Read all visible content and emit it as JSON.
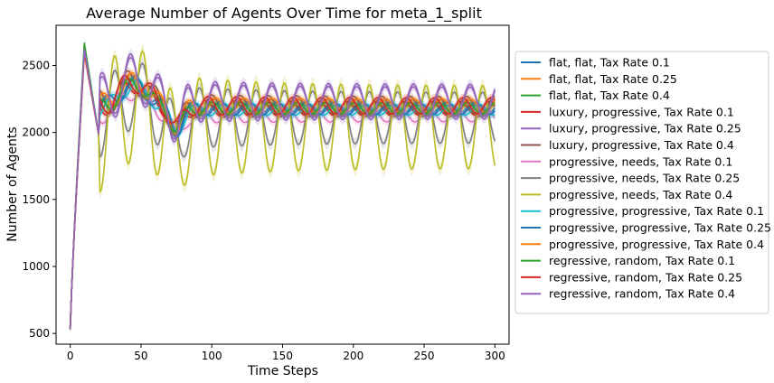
{
  "chart_data": {
    "type": "line",
    "title": "Average Number of Agents Over Time for meta_1_split",
    "xlabel": "Time Steps",
    "ylabel": "Number of Agents",
    "xlim": [
      -10,
      310
    ],
    "ylim": [
      420,
      2800
    ],
    "xticks": [
      0,
      50,
      100,
      150,
      200,
      250,
      300
    ],
    "yticks": [
      500,
      1000,
      1500,
      2000,
      2500
    ],
    "grid": false,
    "legend_placement": "right, outside plot",
    "series": [
      {
        "name": "flat, flat, Tax Rate 0.1",
        "color": "#1f77b4",
        "start": 530,
        "peak": 2600,
        "mean": 2170,
        "amp": 40,
        "period": 20,
        "phase": 0.3
      },
      {
        "name": "flat, flat, Tax Rate 0.25",
        "color": "#ff7f0e",
        "start": 540,
        "peak": 2620,
        "mean": 2200,
        "amp": 45,
        "period": 20,
        "phase": 1.1
      },
      {
        "name": "flat, flat, Tax Rate 0.4",
        "color": "#2ca02c",
        "start": 530,
        "peak": 2670,
        "mean": 2160,
        "amp": 40,
        "period": 20,
        "phase": 2.0
      },
      {
        "name": "luxury, progressive, Tax Rate 0.1",
        "color": "#d62728",
        "start": 540,
        "peak": 2590,
        "mean": 2180,
        "amp": 50,
        "period": 20,
        "phase": 2.8
      },
      {
        "name": "luxury, progressive, Tax Rate 0.25",
        "color": "#9467bd",
        "start": 530,
        "peak": 2610,
        "mean": 2230,
        "amp": 110,
        "period": 20,
        "phase": 0.8
      },
      {
        "name": "luxury, progressive, Tax Rate 0.4",
        "color": "#8c564b",
        "start": 540,
        "peak": 2600,
        "mean": 2200,
        "amp": 70,
        "period": 20,
        "phase": 1.6
      },
      {
        "name": "progressive, needs, Tax Rate 0.1",
        "color": "#e377c2",
        "start": 530,
        "peak": 2580,
        "mean": 2130,
        "amp": 50,
        "period": 20,
        "phase": 3.6
      },
      {
        "name": "progressive, needs, Tax Rate 0.25",
        "color": "#7f7f7f",
        "start": 540,
        "peak": 2620,
        "mean": 2110,
        "amp": 190,
        "period": 20,
        "phase": 4.3
      },
      {
        "name": "progressive, needs, Tax Rate 0.4",
        "color": "#bcbd22",
        "start": 530,
        "peak": 2600,
        "mean": 2040,
        "amp": 310,
        "period": 20,
        "phase": 4.3
      },
      {
        "name": "progressive, progressive, Tax Rate 0.1",
        "color": "#17becf",
        "start": 540,
        "peak": 2610,
        "mean": 2170,
        "amp": 40,
        "period": 20,
        "phase": 5.1
      },
      {
        "name": "progressive, progressive, Tax Rate 0.25",
        "color": "#1f77b4",
        "start": 530,
        "peak": 2630,
        "mean": 2180,
        "amp": 45,
        "period": 20,
        "phase": 5.9
      },
      {
        "name": "progressive, progressive, Tax Rate 0.4",
        "color": "#ff7f0e",
        "start": 540,
        "peak": 2600,
        "mean": 2200,
        "amp": 50,
        "period": 20,
        "phase": 0.6
      },
      {
        "name": "regressive, random, Tax Rate 0.1",
        "color": "#2ca02c",
        "start": 530,
        "peak": 2640,
        "mean": 2180,
        "amp": 40,
        "period": 20,
        "phase": 1.4
      },
      {
        "name": "regressive, random, Tax Rate 0.25",
        "color": "#d62728",
        "start": 540,
        "peak": 2600,
        "mean": 2200,
        "amp": 60,
        "period": 20,
        "phase": 2.4
      },
      {
        "name": "regressive, random, Tax Rate 0.4",
        "color": "#9467bd",
        "start": 530,
        "peak": 2620,
        "mean": 2230,
        "amp": 130,
        "period": 20,
        "phase": 0.8
      }
    ]
  }
}
